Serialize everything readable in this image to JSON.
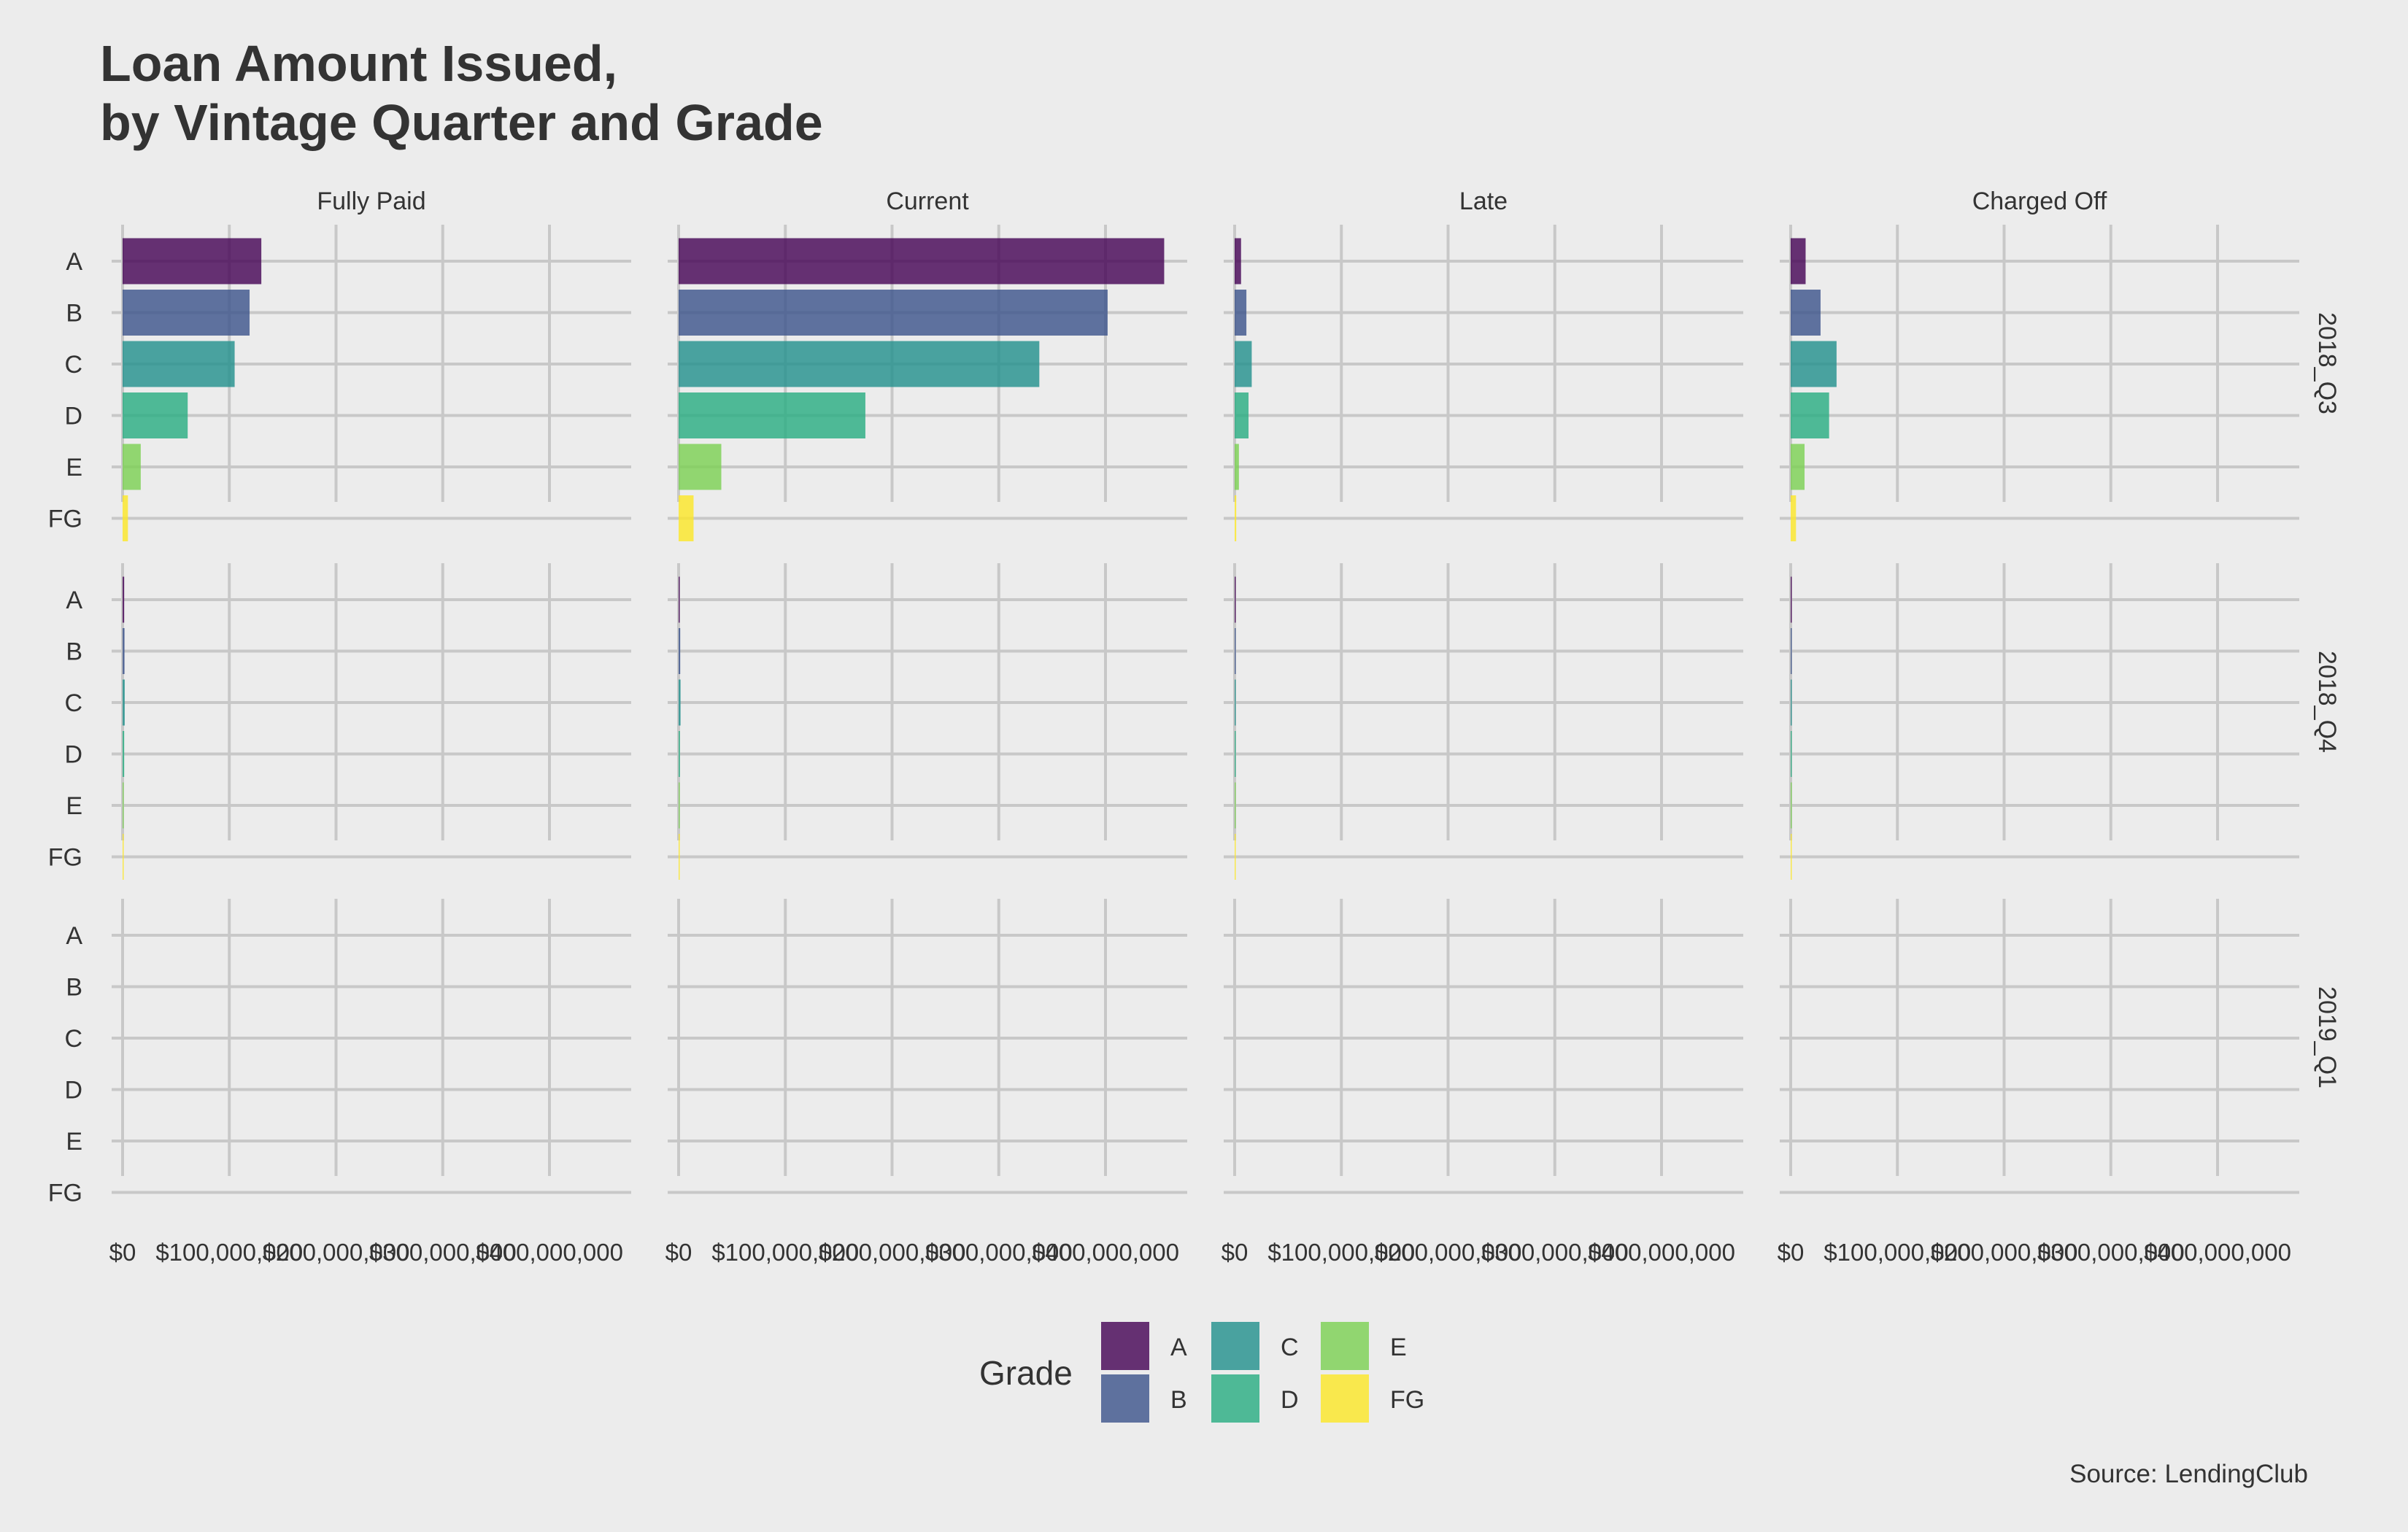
{
  "chart_data": {
    "type": "bar",
    "orientation": "horizontal",
    "title_lines": [
      "Loan Amount Issued,",
      "by Vintage Quarter and Grade"
    ],
    "caption": "Source: LendingClub",
    "facet_columns": [
      "Fully Paid",
      "Current",
      "Late",
      "Charged Off"
    ],
    "facet_rows": [
      "2018_Q3",
      "2018_Q4",
      "2019_Q1"
    ],
    "categories": [
      "A",
      "B",
      "C",
      "D",
      "E",
      "FG"
    ],
    "x_ticks": [
      0,
      100000000,
      200000000,
      300000000,
      400000000
    ],
    "x_tick_labels": [
      "$0",
      "$100,000,000",
      "$200,000,000",
      "$300,000,000",
      "$400,000,000"
    ],
    "xlim": [
      0,
      480000000
    ],
    "legend": {
      "title": "Grade",
      "position": "bottom",
      "entries": [
        "A",
        "B",
        "C",
        "D",
        "E",
        "FG"
      ],
      "colors": [
        "#440154",
        "#3b528b",
        "#21908c",
        "#27ad81",
        "#7ad151",
        "#fde725"
      ]
    },
    "values": {
      "2018_Q3": {
        "Fully Paid": [
          130000000,
          119000000,
          105000000,
          61000000,
          17000000,
          5000000
        ],
        "Current": [
          455000000,
          402000000,
          338000000,
          175000000,
          40000000,
          14000000
        ],
        "Late": [
          6000000,
          11000000,
          16000000,
          13000000,
          4000000,
          1500000
        ],
        "Charged Off": [
          14000000,
          28000000,
          43000000,
          36000000,
          13000000,
          5000000
        ]
      },
      "2018_Q4": {
        "Fully Paid": [
          1500000,
          1800000,
          2000000,
          1500000,
          800000,
          300000
        ],
        "Current": [
          800000,
          1500000,
          1800000,
          1200000,
          400000,
          200000
        ],
        "Late": [
          100000,
          100000,
          100000,
          100000,
          50000,
          20000
        ],
        "Charged Off": [
          100000,
          200000,
          200000,
          200000,
          100000,
          50000
        ]
      },
      "2019_Q1": {
        "Fully Paid": [
          0,
          0,
          0,
          0,
          0,
          0
        ],
        "Current": [
          0,
          0,
          0,
          0,
          0,
          0
        ],
        "Late": [
          0,
          0,
          0,
          0,
          0,
          0
        ],
        "Charged Off": [
          0,
          0,
          0,
          0,
          0,
          0
        ]
      }
    },
    "grid": true
  }
}
